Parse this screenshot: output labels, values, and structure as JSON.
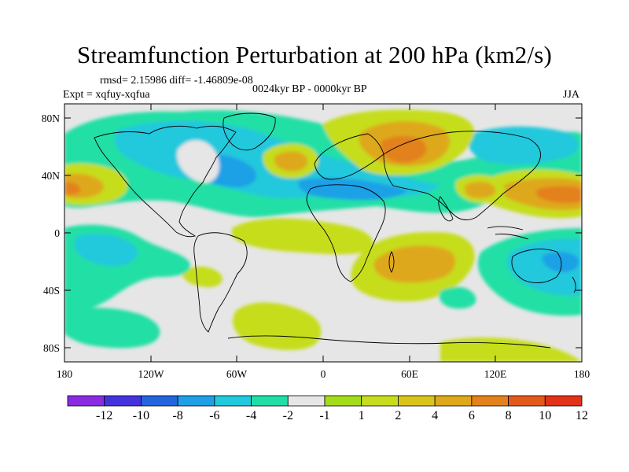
{
  "title": "Streamfunction Perturbation at 200 hPa (km2/s)",
  "stats": "rmsd= 2.15986 diff= -1.46809e-08",
  "experiment": "Expt = xqfuy-xqfua",
  "period": "0024kyr BP - 0000kyr BP",
  "season": "JJA",
  "map": {
    "lat_ticks": [
      "80N",
      "40N",
      "0",
      "40S",
      "80S"
    ],
    "lon_ticks": [
      "180",
      "120W",
      "60W",
      "0",
      "60E",
      "120E",
      "180"
    ]
  },
  "colors": {
    "background": "#e6e6e6",
    "palette": [
      "#8a2be2",
      "#4433dd",
      "#2266dd",
      "#1fa0e6",
      "#22c8dc",
      "#20dfa6",
      "#e6e6e6",
      "#a3dc1a",
      "#c6dd1d",
      "#d9c41a",
      "#dea81a",
      "#e3811c",
      "#e4581c",
      "#e23218"
    ]
  },
  "colorbar": {
    "labels": [
      "-12",
      "-10",
      "-8",
      "-6",
      "-4",
      "-2",
      "-1",
      "1",
      "2",
      "4",
      "6",
      "8",
      "10",
      "12"
    ]
  }
}
